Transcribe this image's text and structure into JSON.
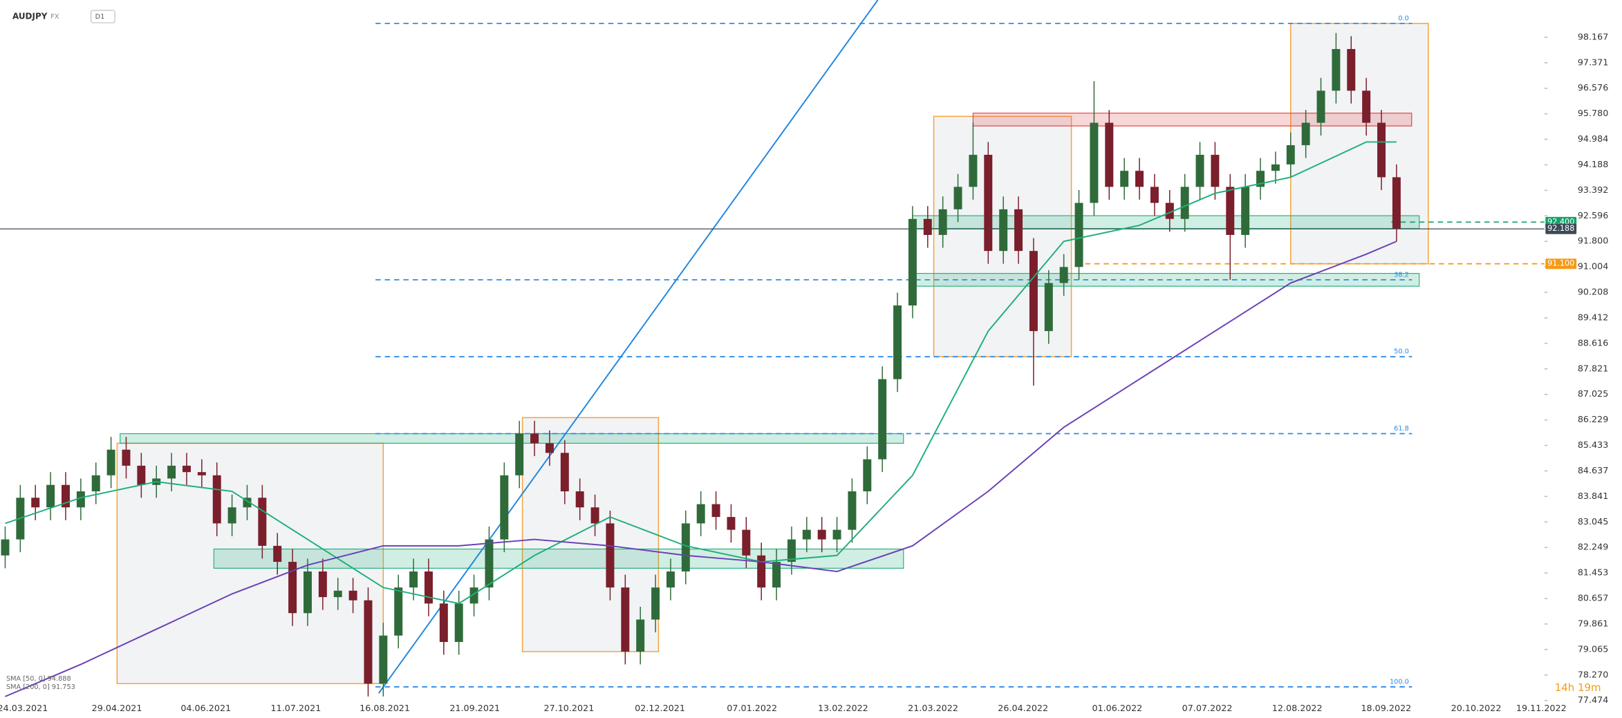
{
  "chart_data": {
    "type": "candlestick",
    "symbol": "AUDJPY",
    "market": "FX",
    "interval": "D1",
    "up_color": "#2f6b3a",
    "down_color": "#7a1f2b",
    "open": [
      82.0,
      82.5,
      83.8,
      83.5,
      84.2,
      83.5,
      84.0,
      84.5,
      85.3,
      84.8,
      84.2,
      84.4,
      84.8,
      84.6,
      84.5,
      83.0,
      83.5,
      83.8,
      82.3,
      81.8,
      80.2,
      81.5,
      80.7,
      80.9,
      80.6,
      78.0,
      79.5,
      81.0,
      81.5,
      80.5,
      79.3,
      80.5,
      81.0,
      82.5,
      84.5,
      85.8,
      85.5,
      85.2,
      84.0,
      83.5,
      83.0,
      81.0,
      79.0,
      80.0,
      81.0,
      81.5,
      83.0,
      83.6,
      83.2,
      82.8,
      82.0,
      81.0,
      81.8,
      82.5,
      82.8,
      82.5,
      82.8,
      84.0,
      85.0,
      87.5,
      89.8,
      92.5,
      92.0,
      92.8,
      93.5,
      94.5,
      91.5,
      92.8,
      91.5,
      89.0,
      90.5,
      91.0,
      93.0,
      95.5,
      93.5,
      94.0,
      93.5,
      93.0,
      92.5,
      93.5,
      94.5,
      93.5,
      92.0,
      93.5,
      94.0,
      94.2,
      94.8,
      95.5,
      96.5,
      97.8,
      96.5,
      95.5,
      93.8
    ],
    "high": [
      82.9,
      84.2,
      84.2,
      84.6,
      84.6,
      84.4,
      84.9,
      85.7,
      85.7,
      85.2,
      84.8,
      85.2,
      85.2,
      85.0,
      84.9,
      83.9,
      84.2,
      84.2,
      82.7,
      82.2,
      81.9,
      81.9,
      81.3,
      81.3,
      81.0,
      79.9,
      81.4,
      81.9,
      81.9,
      80.9,
      80.9,
      81.4,
      82.9,
      84.9,
      86.2,
      86.2,
      85.9,
      85.6,
      84.4,
      83.9,
      83.4,
      81.4,
      80.4,
      81.4,
      81.9,
      83.4,
      84.0,
      84.0,
      83.6,
      83.2,
      82.4,
      82.2,
      82.9,
      83.2,
      83.2,
      83.2,
      84.4,
      85.4,
      87.9,
      90.2,
      92.9,
      92.9,
      93.2,
      93.9,
      95.5,
      94.9,
      93.2,
      93.2,
      91.9,
      90.9,
      91.4,
      93.4,
      96.8,
      95.9,
      94.4,
      94.4,
      93.9,
      93.4,
      93.9,
      94.9,
      94.9,
      93.9,
      93.9,
      94.4,
      94.6,
      95.2,
      95.9,
      96.9,
      98.3,
      98.2,
      96.9,
      95.9,
      94.2
    ],
    "low": [
      81.6,
      82.1,
      83.1,
      83.1,
      83.1,
      83.1,
      83.6,
      84.1,
      84.4,
      83.8,
      83.8,
      84.0,
      84.2,
      84.1,
      82.6,
      82.6,
      83.1,
      81.9,
      81.4,
      79.8,
      79.8,
      80.3,
      80.3,
      80.2,
      77.6,
      77.6,
      79.1,
      80.6,
      80.1,
      78.9,
      78.9,
      80.1,
      80.6,
      82.1,
      84.1,
      85.1,
      84.8,
      83.6,
      83.1,
      82.6,
      80.6,
      78.6,
      78.6,
      79.6,
      80.6,
      81.1,
      82.6,
      82.8,
      82.4,
      81.6,
      80.6,
      80.6,
      81.4,
      82.1,
      82.1,
      82.1,
      82.4,
      83.6,
      84.6,
      87.1,
      89.4,
      91.6,
      91.6,
      92.4,
      93.1,
      91.1,
      91.1,
      91.1,
      87.3,
      88.6,
      90.1,
      90.6,
      92.6,
      93.1,
      93.1,
      93.1,
      92.6,
      92.1,
      92.1,
      93.1,
      93.1,
      90.6,
      91.6,
      93.1,
      93.6,
      93.8,
      94.4,
      95.1,
      96.1,
      96.1,
      95.1,
      93.4,
      91.8
    ],
    "close": [
      82.5,
      83.8,
      83.5,
      84.2,
      83.5,
      84.0,
      84.5,
      85.3,
      84.8,
      84.2,
      84.4,
      84.8,
      84.6,
      84.5,
      83.0,
      83.5,
      83.8,
      82.3,
      81.8,
      80.2,
      81.5,
      80.7,
      80.9,
      80.6,
      78.0,
      79.5,
      81.0,
      81.5,
      80.5,
      79.3,
      80.5,
      81.0,
      82.5,
      84.5,
      85.8,
      85.5,
      85.2,
      84.0,
      83.5,
      83.0,
      81.0,
      79.0,
      80.0,
      81.0,
      81.5,
      83.0,
      83.6,
      83.2,
      82.8,
      82.0,
      81.0,
      81.8,
      82.5,
      82.8,
      82.5,
      82.8,
      84.0,
      85.0,
      87.5,
      89.8,
      92.5,
      92.0,
      92.8,
      93.5,
      94.5,
      91.5,
      92.8,
      91.5,
      89.0,
      90.5,
      91.0,
      93.0,
      95.5,
      93.5,
      94.0,
      93.5,
      93.0,
      92.5,
      93.5,
      94.5,
      93.5,
      92.0,
      93.5,
      94.0,
      94.2,
      94.8,
      95.5,
      96.5,
      97.8,
      96.5,
      95.5,
      93.8,
      92.2
    ],
    "series": [
      {
        "name": "SMA [50, 0] 94.888",
        "color": "#1fae7b",
        "x": [
          0,
          5,
          10,
          15,
          20,
          25,
          30,
          35,
          40,
          45,
          50,
          55,
          60,
          65,
          70,
          75,
          80,
          85,
          90,
          92
        ],
        "values": [
          83.0,
          83.8,
          84.3,
          84.0,
          82.5,
          81.0,
          80.5,
          82.0,
          83.2,
          82.3,
          81.8,
          82.0,
          84.5,
          89.0,
          91.8,
          92.3,
          93.3,
          93.8,
          94.9,
          94.9
        ]
      },
      {
        "name": "SMA [200, 0] 91.753",
        "color": "#6a3fb5",
        "x": [
          0,
          5,
          10,
          15,
          20,
          25,
          30,
          35,
          40,
          45,
          50,
          55,
          60,
          65,
          70,
          75,
          80,
          85,
          90,
          92
        ],
        "values": [
          77.6,
          78.6,
          79.7,
          80.8,
          81.7,
          82.3,
          82.3,
          82.5,
          82.3,
          82.0,
          81.8,
          81.5,
          82.3,
          84.0,
          86.0,
          87.5,
          89.0,
          90.5,
          91.4,
          91.8
        ]
      }
    ],
    "ylim": [
      77.38,
      99.33
    ],
    "yticks": [
      98.167,
      97.371,
      96.576,
      {
        "value": 95.78,
        "label": "95.780"
      },
      94.984,
      94.188,
      93.392,
      92.596,
      {
        "value": 91.8,
        "label": "91.800"
      },
      91.004,
      90.208,
      89.412,
      88.616,
      87.821,
      87.025,
      86.229,
      85.433,
      84.637,
      83.841,
      83.045,
      82.249,
      81.453,
      80.657,
      79.861,
      79.065,
      {
        "value": 78.27,
        "label": "78.270"
      },
      77.474
    ],
    "x_labels": [
      "24.03.2021",
      "29.04.2021",
      "04.06.2021",
      "11.07.2021",
      "16.08.2021",
      "21.09.2021",
      "27.10.2021",
      "02.12.2021",
      "07.01.2022",
      "13.02.2022",
      "21.03.2022",
      "26.04.2022",
      "01.06.2022",
      "07.07.2022",
      "12.08.2022",
      "18.09.2022",
      "20.10.2022",
      "19.11.2022"
    ],
    "fib_levels": [
      {
        "label": "0.0",
        "price": 98.6
      },
      {
        "label": "38.2",
        "price": 90.6
      },
      {
        "label": "50.0",
        "price": 88.2
      },
      {
        "label": "61.8",
        "price": 85.8
      },
      {
        "label": "100.0",
        "price": 77.9
      }
    ],
    "boxes": [
      {
        "from": 7.4,
        "to": 25.0,
        "low": 78.0,
        "high": 85.5
      },
      {
        "from": 34.2,
        "to": 43.2,
        "low": 79.0,
        "high": 86.3
      },
      {
        "from": 61.4,
        "to": 70.5,
        "low": 88.2,
        "high": 95.7
      },
      {
        "from": 85.0,
        "to": 94.1,
        "low": 91.1,
        "high": 98.6
      }
    ],
    "zones": [
      {
        "from": 7.6,
        "to": 59.4,
        "low": 85.5,
        "high": 85.8,
        "color": "#2ab07f"
      },
      {
        "from": 13.8,
        "to": 59.4,
        "low": 81.6,
        "high": 82.2,
        "color": "#2ab07f"
      },
      {
        "from": 60.0,
        "to": 93.5,
        "low": 92.2,
        "high": 92.6,
        "color": "#2ab07f"
      },
      {
        "from": 60.0,
        "to": 93.5,
        "low": 90.4,
        "high": 90.8,
        "color": "#2ab07f"
      },
      {
        "from": 64.0,
        "to": 93.0,
        "low": 95.4,
        "high": 95.8,
        "color": "#e04848"
      }
    ],
    "trend_line": {
      "from": [
        24.7,
        77.7
      ],
      "to": [
        57.7,
        99.33
      ]
    },
    "price_tags": [
      {
        "value": 92.4,
        "label": "92.400",
        "color": "#13a36a"
      },
      {
        "value": 92.188,
        "label": "92.188",
        "color": "#3d4a57"
      },
      {
        "value": 91.1,
        "label": "91.100",
        "color": "#f59b16"
      }
    ],
    "countdown": "14h 19m"
  }
}
